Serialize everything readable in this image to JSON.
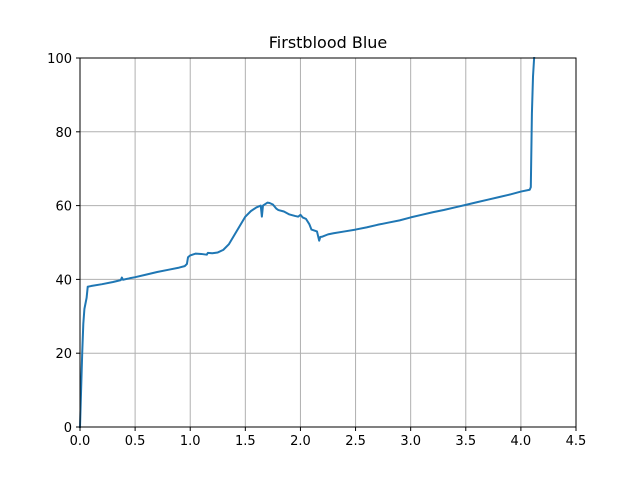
{
  "chart_data": {
    "type": "line",
    "title": "Firstblood Blue",
    "xlabel": "",
    "ylabel": "",
    "xlim": [
      0,
      4.5
    ],
    "ylim": [
      0,
      100
    ],
    "x_ticks": [
      0.0,
      0.5,
      1.0,
      1.5,
      2.0,
      2.5,
      3.0,
      3.5,
      4.0,
      4.5
    ],
    "x_tick_labels": [
      "0.0",
      "0.5",
      "1.0",
      "1.5",
      "2.0",
      "2.5",
      "3.0",
      "3.5",
      "4.0",
      "4.5"
    ],
    "y_ticks": [
      0,
      20,
      40,
      60,
      80,
      100
    ],
    "y_tick_labels": [
      "0",
      "20",
      "40",
      "60",
      "80",
      "100"
    ],
    "grid": true,
    "line_color": "#1f77b4",
    "series": [
      {
        "points": [
          [
            0.0,
            0.0
          ],
          [
            0.01,
            10.0
          ],
          [
            0.02,
            20.0
          ],
          [
            0.03,
            28.0
          ],
          [
            0.04,
            32.0
          ],
          [
            0.05,
            33.5
          ],
          [
            0.06,
            35.0
          ],
          [
            0.07,
            38.0
          ],
          [
            0.1,
            38.2
          ],
          [
            0.2,
            38.7
          ],
          [
            0.3,
            39.3
          ],
          [
            0.37,
            39.8
          ],
          [
            0.38,
            40.5
          ],
          [
            0.39,
            39.9
          ],
          [
            0.45,
            40.3
          ],
          [
            0.5,
            40.6
          ],
          [
            0.6,
            41.3
          ],
          [
            0.7,
            42.0
          ],
          [
            0.8,
            42.6
          ],
          [
            0.9,
            43.2
          ],
          [
            0.95,
            43.6
          ],
          [
            0.97,
            44.2
          ],
          [
            0.98,
            46.0
          ],
          [
            1.0,
            46.5
          ],
          [
            1.05,
            47.0
          ],
          [
            1.1,
            46.9
          ],
          [
            1.15,
            46.7
          ],
          [
            1.16,
            47.2
          ],
          [
            1.2,
            47.1
          ],
          [
            1.25,
            47.3
          ],
          [
            1.3,
            48.0
          ],
          [
            1.35,
            49.5
          ],
          [
            1.4,
            52.0
          ],
          [
            1.45,
            54.5
          ],
          [
            1.5,
            57.0
          ],
          [
            1.55,
            58.5
          ],
          [
            1.6,
            59.5
          ],
          [
            1.64,
            60.0
          ],
          [
            1.65,
            57.0
          ],
          [
            1.66,
            60.0
          ],
          [
            1.7,
            60.8
          ],
          [
            1.72,
            60.7
          ],
          [
            1.75,
            60.3
          ],
          [
            1.78,
            59.2
          ],
          [
            1.8,
            58.8
          ],
          [
            1.85,
            58.4
          ],
          [
            1.9,
            57.6
          ],
          [
            1.95,
            57.2
          ],
          [
            1.98,
            57.0
          ],
          [
            2.0,
            57.5
          ],
          [
            2.02,
            56.8
          ],
          [
            2.05,
            56.4
          ],
          [
            2.08,
            55.0
          ],
          [
            2.1,
            53.5
          ],
          [
            2.15,
            53.0
          ],
          [
            2.17,
            50.5
          ],
          [
            2.18,
            51.5
          ],
          [
            2.2,
            51.6
          ],
          [
            2.25,
            52.2
          ],
          [
            2.3,
            52.5
          ],
          [
            2.4,
            53.0
          ],
          [
            2.5,
            53.5
          ],
          [
            2.6,
            54.1
          ],
          [
            2.7,
            54.8
          ],
          [
            2.8,
            55.4
          ],
          [
            2.9,
            56.0
          ],
          [
            3.0,
            56.8
          ],
          [
            3.1,
            57.5
          ],
          [
            3.2,
            58.2
          ],
          [
            3.3,
            58.8
          ],
          [
            3.4,
            59.5
          ],
          [
            3.5,
            60.2
          ],
          [
            3.6,
            60.9
          ],
          [
            3.7,
            61.6
          ],
          [
            3.8,
            62.3
          ],
          [
            3.9,
            63.0
          ],
          [
            4.0,
            63.8
          ],
          [
            4.08,
            64.3
          ],
          [
            4.09,
            65.0
          ],
          [
            4.1,
            85.0
          ],
          [
            4.11,
            95.0
          ],
          [
            4.12,
            100.0
          ]
        ]
      }
    ]
  }
}
